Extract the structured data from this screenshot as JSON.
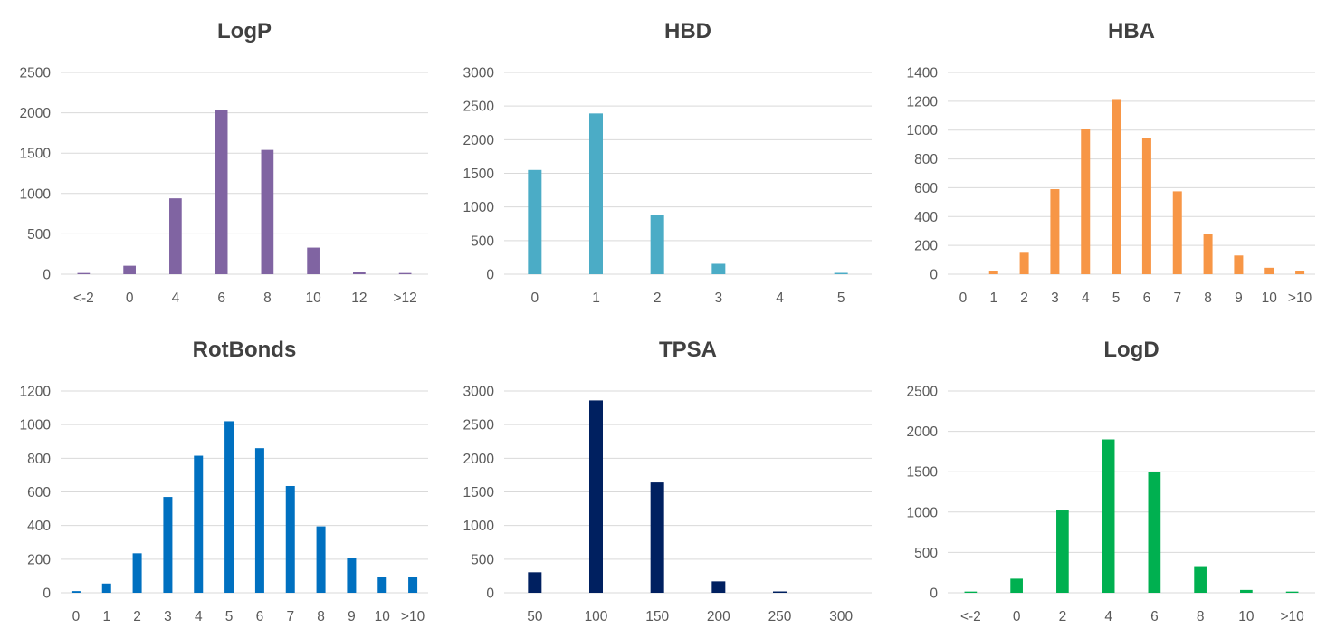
{
  "chart_data": [
    {
      "type": "bar",
      "title": "LogP",
      "categories": [
        "<-2",
        "0",
        "4",
        "6",
        "8",
        "10",
        "12",
        ">12"
      ],
      "values": [
        15,
        105,
        940,
        2030,
        1540,
        330,
        25,
        15
      ],
      "ylim": [
        0,
        2500
      ],
      "yticks": [
        0,
        500,
        1000,
        1500,
        2000,
        2500
      ],
      "color": "#8064a2",
      "xlabel": "",
      "ylabel": "",
      "grid": true,
      "legend": "none"
    },
    {
      "type": "bar",
      "title": "HBD",
      "categories": [
        "0",
        "1",
        "2",
        "3",
        "4",
        "5"
      ],
      "values": [
        1550,
        2390,
        880,
        155,
        0,
        20
      ],
      "ylim": [
        0,
        3000
      ],
      "yticks": [
        0,
        500,
        1000,
        1500,
        2000,
        2500,
        3000
      ],
      "color": "#4bacc6",
      "xlabel": "",
      "ylabel": "",
      "grid": true,
      "legend": "none"
    },
    {
      "type": "bar",
      "title": "HBA",
      "categories": [
        "0",
        "1",
        "2",
        "3",
        "4",
        "5",
        "6",
        "7",
        "8",
        "9",
        "10",
        ">10"
      ],
      "values": [
        0,
        25,
        155,
        590,
        1010,
        1215,
        945,
        575,
        280,
        130,
        45,
        25
      ],
      "ylim": [
        0,
        1400
      ],
      "yticks": [
        0,
        200,
        400,
        600,
        800,
        1000,
        1200,
        1400
      ],
      "color": "#f79646",
      "xlabel": "",
      "ylabel": "",
      "grid": true,
      "legend": "none"
    },
    {
      "type": "bar",
      "title": "RotBonds",
      "categories": [
        "0",
        "1",
        "2",
        "3",
        "4",
        "5",
        "6",
        "7",
        "8",
        "9",
        "10",
        ">10"
      ],
      "values": [
        10,
        55,
        235,
        570,
        815,
        1020,
        860,
        635,
        395,
        205,
        95,
        95
      ],
      "ylim": [
        0,
        1200
      ],
      "yticks": [
        0,
        200,
        400,
        600,
        800,
        1000,
        1200
      ],
      "color": "#0070c0",
      "xlabel": "",
      "ylabel": "",
      "grid": true,
      "legend": "none"
    },
    {
      "type": "bar",
      "title": "TPSA",
      "categories": [
        "50",
        "100",
        "150",
        "200",
        "250",
        "300"
      ],
      "values": [
        305,
        2860,
        1640,
        170,
        20,
        0
      ],
      "ylim": [
        0,
        3000
      ],
      "yticks": [
        0,
        500,
        1000,
        1500,
        2000,
        2500,
        3000
      ],
      "color": "#002060",
      "xlabel": "",
      "ylabel": "",
      "grid": true,
      "legend": "none"
    },
    {
      "type": "bar",
      "title": "LogD",
      "categories": [
        "<-2",
        "0",
        "2",
        "4",
        "6",
        "8",
        "10",
        ">10"
      ],
      "values": [
        15,
        175,
        1020,
        1900,
        1500,
        330,
        35,
        15
      ],
      "ylim": [
        0,
        2500
      ],
      "yticks": [
        0,
        500,
        1000,
        1500,
        2000,
        2500
      ],
      "color": "#00b050",
      "xlabel": "",
      "ylabel": "",
      "grid": true,
      "legend": "none"
    }
  ]
}
